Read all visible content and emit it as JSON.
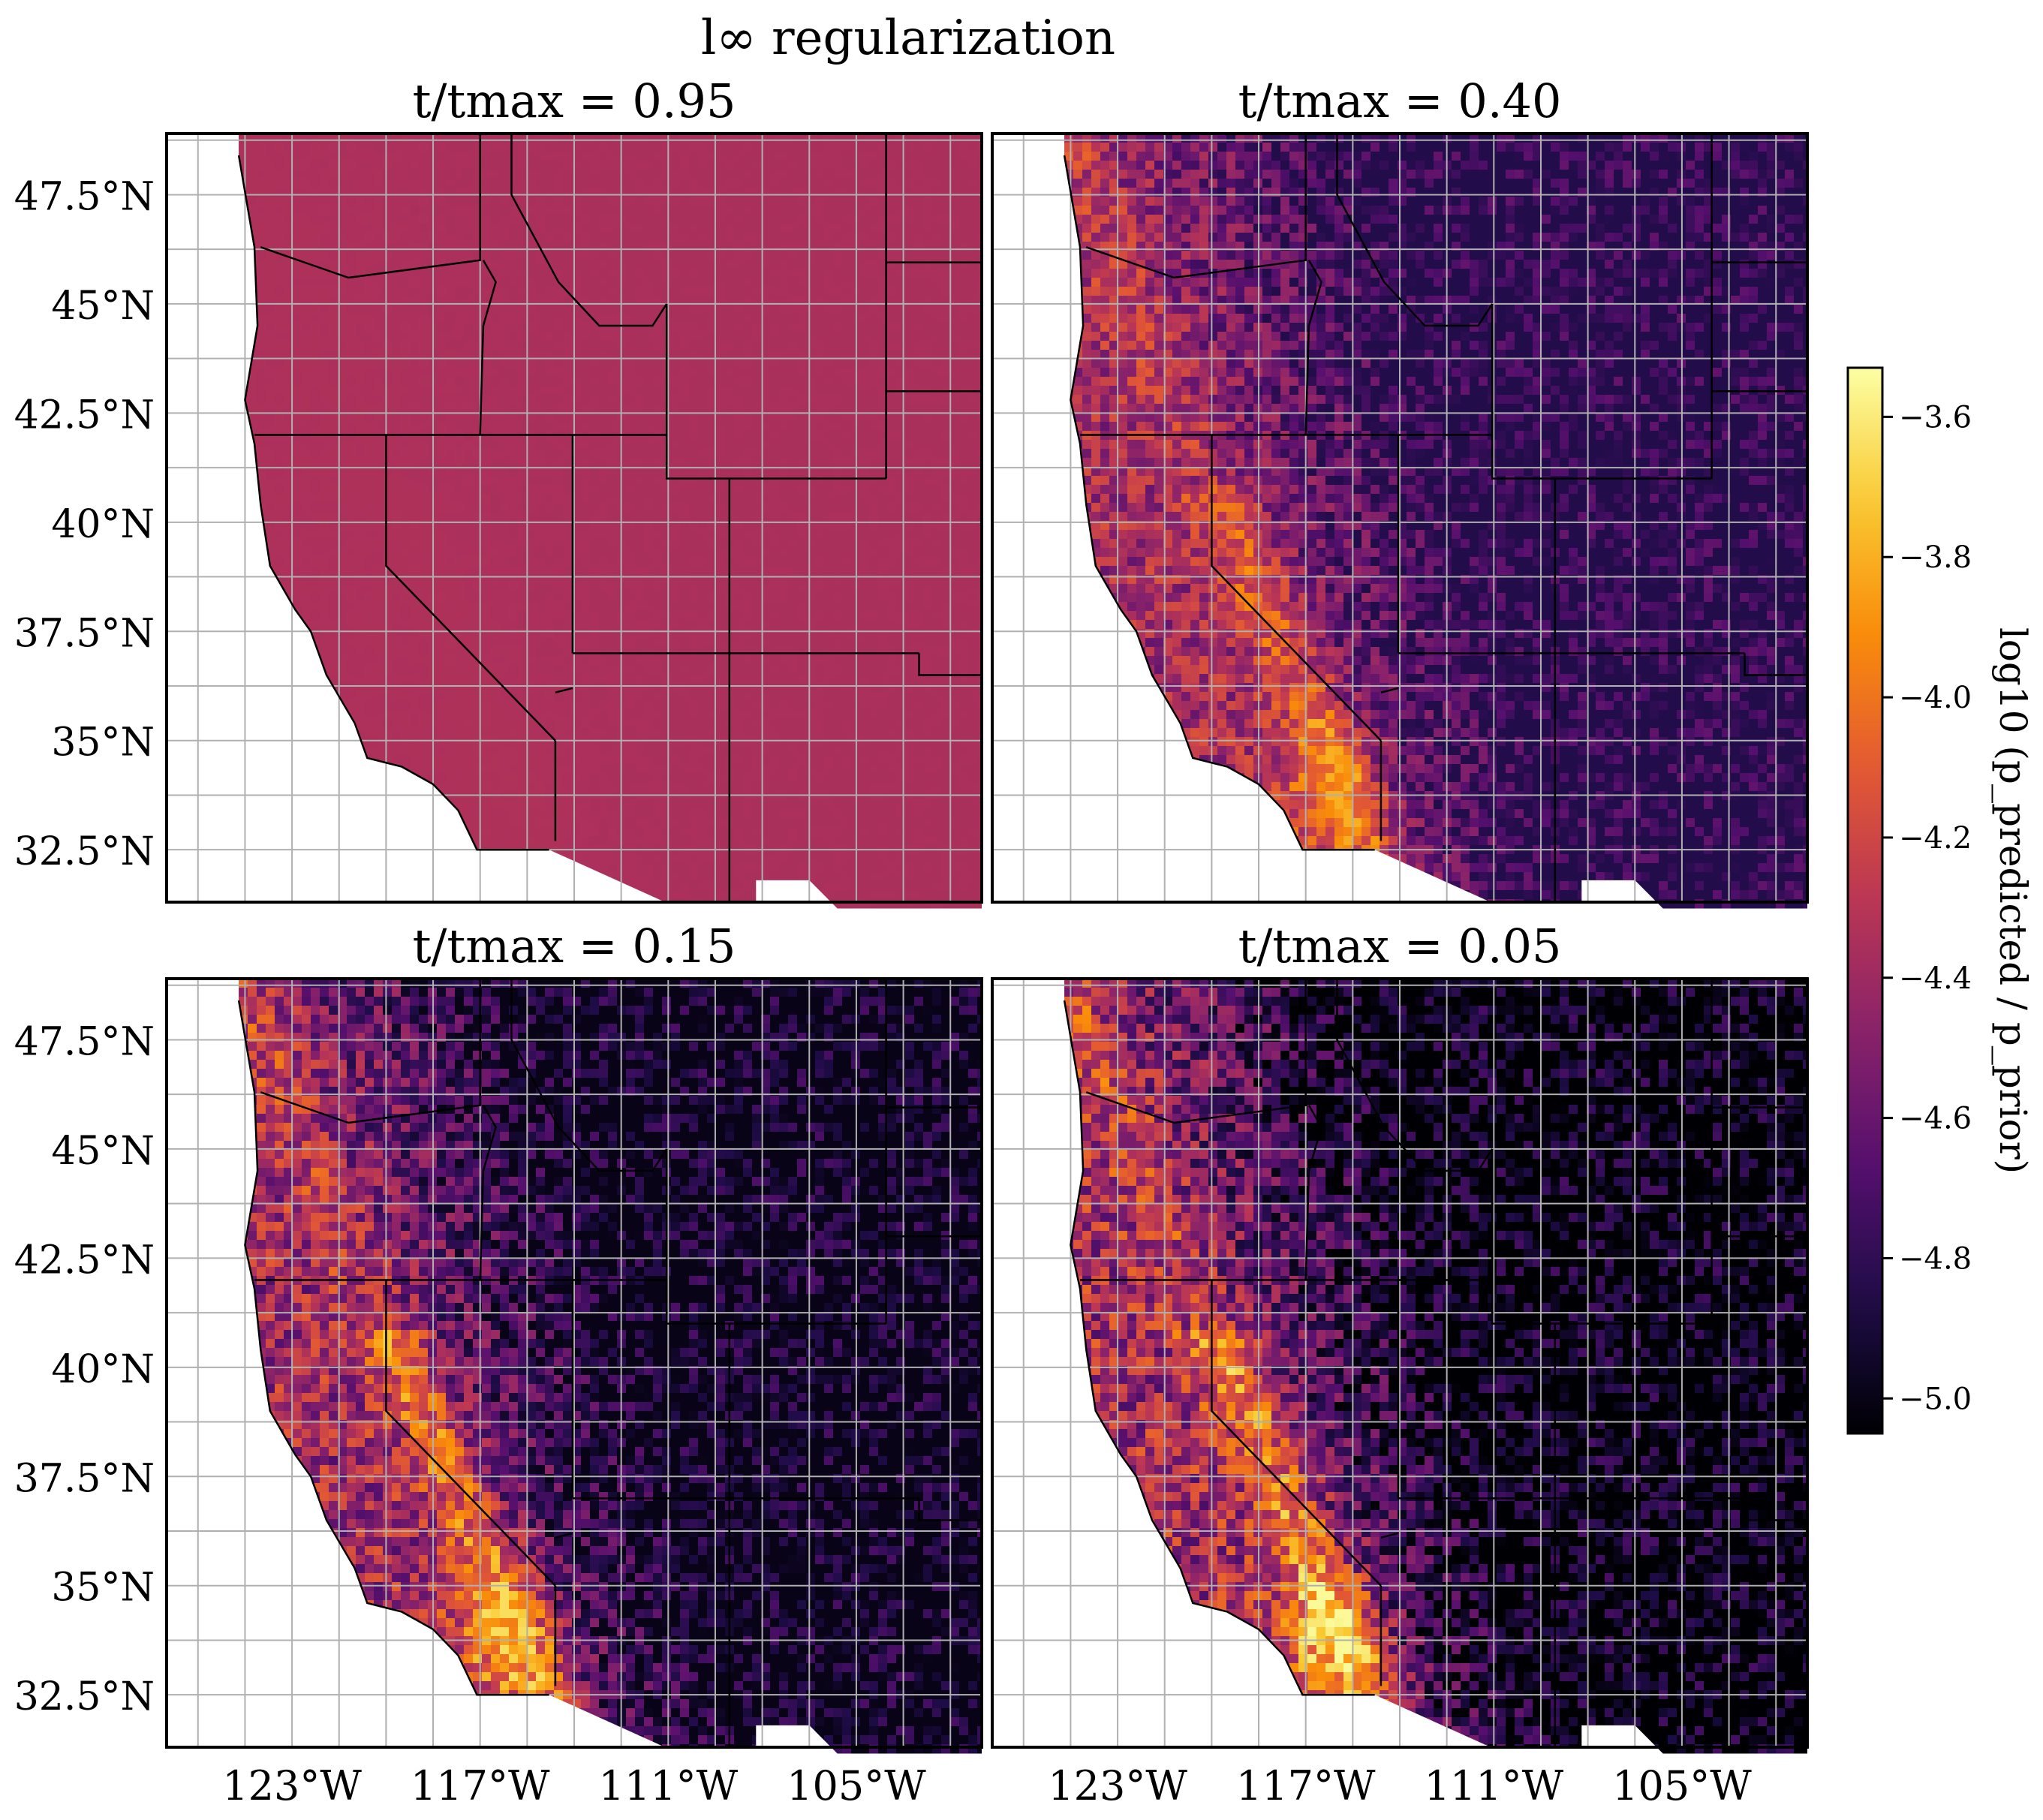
{
  "figure": {
    "suptitle": "l∞ regularization"
  },
  "chart_data": {
    "type": "heatmap",
    "colormap": "inferno",
    "grid": true,
    "lon_ticks": [
      "123°W",
      "117°W",
      "111°W",
      "105°W"
    ],
    "lat_ticks": [
      "47.5°N",
      "45°N",
      "42.5°N",
      "40°N",
      "37.5°N",
      "35°N",
      "32.5°N"
    ],
    "lon_range": [
      -127,
      -101
    ],
    "lat_range": [
      31.3,
      48.9
    ],
    "colorbar": {
      "label": "log10 (p_predicted / p_prior)",
      "range": [
        -5.05,
        -3.53
      ],
      "ticks": [
        "−3.6",
        "−3.8",
        "−4.0",
        "−4.2",
        "−4.4",
        "−4.6",
        "−4.8",
        "−5.0"
      ],
      "tick_values": [
        -3.6,
        -3.8,
        -4.0,
        -4.2,
        -4.4,
        -4.6,
        -4.8,
        -5.0
      ]
    },
    "panels": [
      {
        "title": "t/tmax = 0.95",
        "t_ratio": 0.95,
        "value_range": [
          -4.35,
          -4.33
        ]
      },
      {
        "title": "t/tmax = 0.40",
        "t_ratio": 0.4,
        "value_range": [
          -4.85,
          -3.8
        ]
      },
      {
        "title": "t/tmax = 0.15",
        "t_ratio": 0.15,
        "value_range": [
          -5.0,
          -3.65
        ]
      },
      {
        "title": "t/tmax = 0.05",
        "t_ratio": 0.05,
        "value_range": [
          -5.05,
          -3.55
        ]
      }
    ]
  }
}
